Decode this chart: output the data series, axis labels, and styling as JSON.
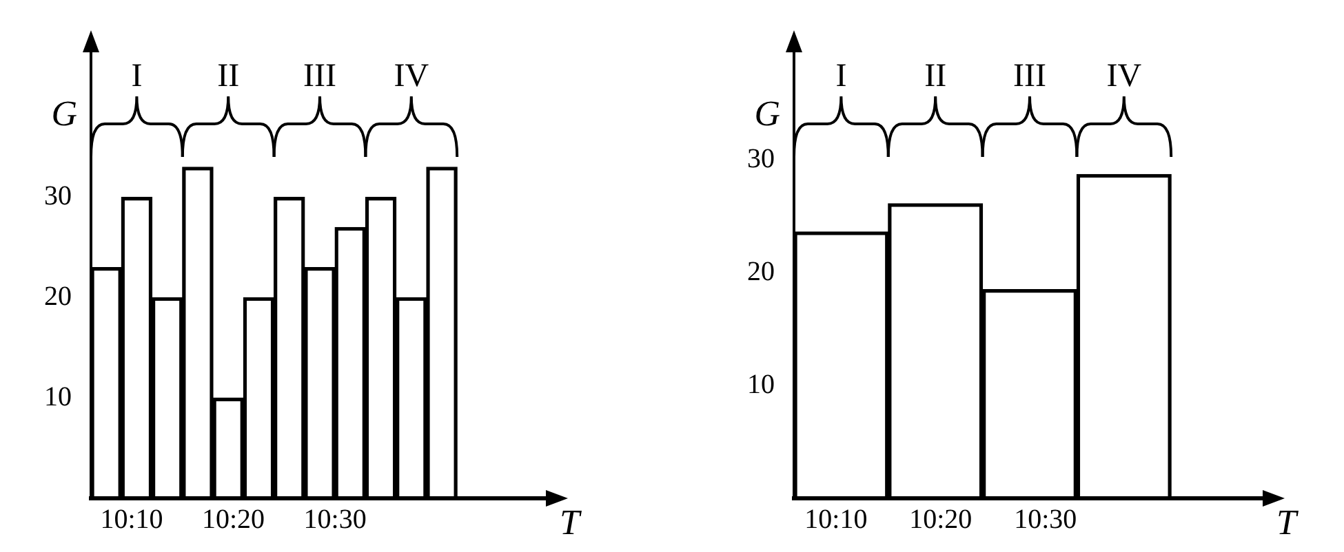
{
  "chart_data": [
    {
      "type": "bar",
      "xlabel": "T",
      "ylabel": "G",
      "color": "#000000",
      "x": [
        10.125,
        10.175,
        10.225,
        10.275,
        10.325,
        10.375,
        10.425,
        10.475,
        10.525,
        10.575,
        10.625,
        10.675
      ],
      "values": [
        23,
        30,
        20,
        33,
        10,
        20,
        30,
        23,
        27,
        30,
        20,
        33
      ],
      "xlim": [
        10.1,
        10.85
      ],
      "xticks": [
        {
          "value": 10.1667,
          "label": "10:10"
        },
        {
          "value": 10.3333,
          "label": "10:20"
        },
        {
          "value": 10.5,
          "label": "10:30"
        }
      ],
      "ylim": [
        0,
        45
      ],
      "yticks": [
        10,
        20,
        30
      ],
      "grid": false,
      "annotations": [
        "I",
        "II",
        "III",
        "IV"
      ]
    },
    {
      "type": "bar",
      "xlabel": "T",
      "ylabel": "G",
      "color": "#000000",
      "x": [
        10.175,
        10.325,
        10.475,
        10.625
      ],
      "values": [
        23.6,
        26.1,
        18.5,
        28.7
      ],
      "xlim": [
        10.1,
        10.85
      ],
      "xticks": [
        {
          "value": 10.1667,
          "label": "10:10"
        },
        {
          "value": 10.3333,
          "label": "10:20"
        },
        {
          "value": 10.5,
          "label": "10:30"
        }
      ],
      "ylim": [
        0,
        40
      ],
      "yticks": [
        10,
        20,
        30
      ],
      "grid": false,
      "annotations": [
        "I",
        "II",
        "III",
        "IV"
      ]
    }
  ]
}
